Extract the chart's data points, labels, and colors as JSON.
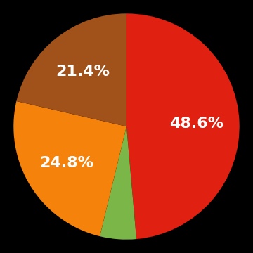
{
  "slices": [
    48.6,
    5.2,
    24.8,
    21.4
  ],
  "colors": [
    "#e02010",
    "#7ab648",
    "#f5820a",
    "#a0521a"
  ],
  "labels": [
    "48.6%",
    "",
    "24.8%",
    "21.4%"
  ],
  "background_color": "#000000",
  "startangle": 90,
  "textcolor": "#ffffff",
  "fontsize": 16
}
